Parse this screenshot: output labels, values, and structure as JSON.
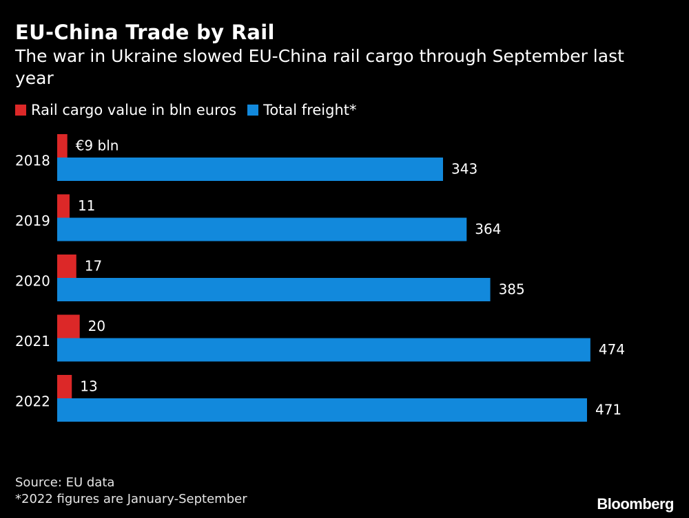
{
  "title": "EU-China Trade by Rail",
  "subtitle": "The war in Ukraine slowed EU-China rail cargo through September last year",
  "legend": [
    {
      "label": "Rail cargo value in bln euros",
      "color": "#dc2828"
    },
    {
      "label": "Total freight*",
      "color": "#1289dc"
    }
  ],
  "footer": {
    "source": "Source: EU data",
    "note": "*2022 figures are January-September",
    "brand": "Bloomberg"
  },
  "chart_data": {
    "type": "bar",
    "orientation": "horizontal",
    "categories": [
      "2018",
      "2019",
      "2020",
      "2021",
      "2022"
    ],
    "series": [
      {
        "name": "Rail cargo value in bln euros",
        "color": "#dc2828",
        "values": [
          9,
          11,
          17,
          20,
          13
        ],
        "labels": [
          "€9 bln",
          "11",
          "17",
          "20",
          "13"
        ]
      },
      {
        "name": "Total freight*",
        "color": "#1289dc",
        "values": [
          343,
          364,
          385,
          474,
          471
        ],
        "labels": [
          "343",
          "364",
          "385",
          "474",
          "471"
        ]
      }
    ],
    "xlim": [
      0,
      490
    ],
    "grid": false,
    "legend_position": "top-left"
  }
}
